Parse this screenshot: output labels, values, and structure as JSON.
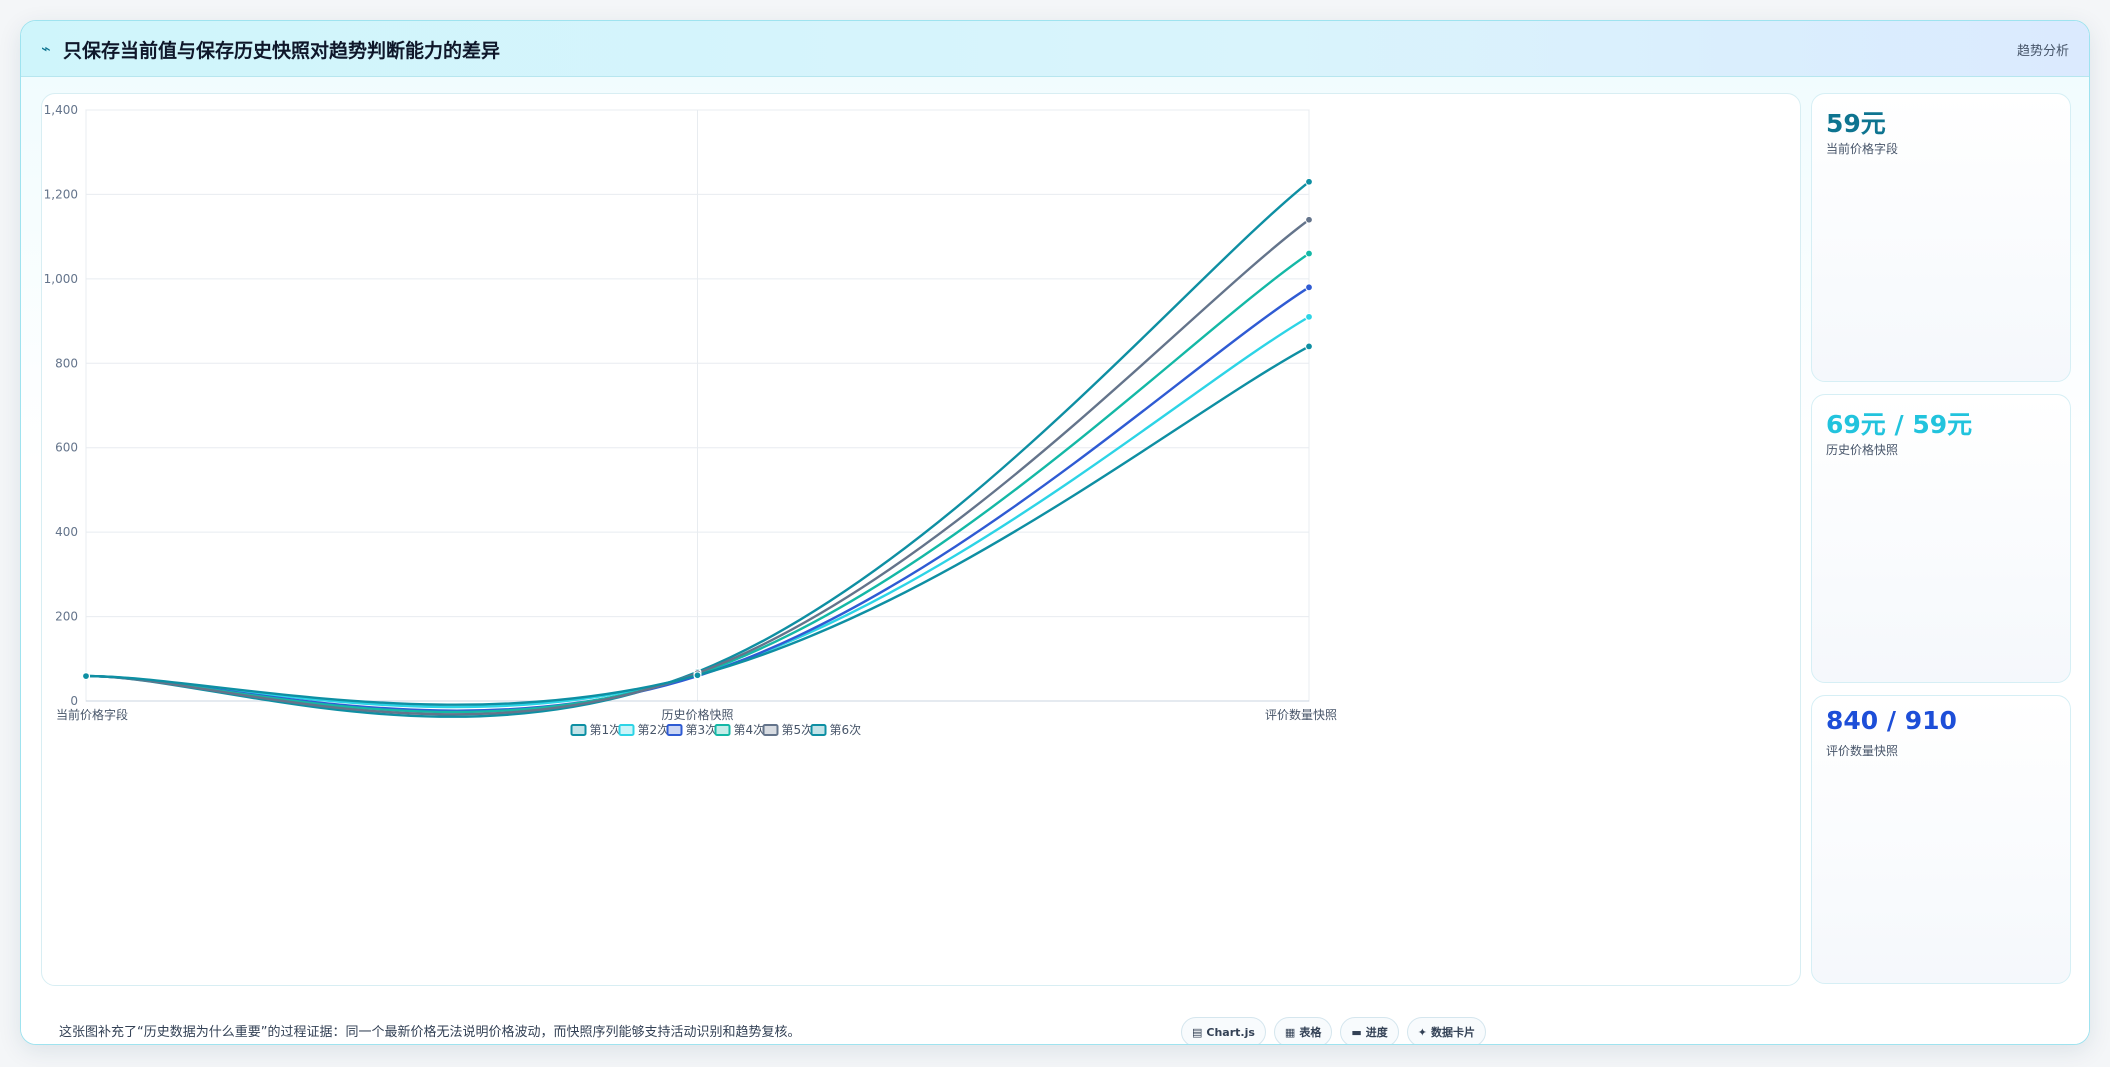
{
  "header": {
    "icon": "trend-line-icon",
    "title": "只保存当前值与保存历史快照对趋势判断能力的差异",
    "tag": "趋势分析"
  },
  "stats": [
    {
      "value": "59元",
      "label": "当前价格字段",
      "color": "#0e7490"
    },
    {
      "value": "69元 / 59元",
      "label": "历史价格快照",
      "color": "#22c3dd"
    },
    {
      "value": "840 / 910",
      "label": "评价数量快照",
      "color": "#1d4ed8"
    }
  ],
  "footer": {
    "note": "这张图补充了“历史数据为什么重要”的过程证据：同一个最新价格无法说明价格波动，而快照序列能够支持活动识别和趋势复核。",
    "chips": [
      {
        "icon": "chart-icon",
        "label": "Chart.js"
      },
      {
        "icon": "table-icon",
        "label": "表格"
      },
      {
        "icon": "progress-icon",
        "label": "进度"
      },
      {
        "icon": "card-icon",
        "label": "数据卡片"
      }
    ]
  },
  "chart_data": {
    "type": "line",
    "title": "",
    "xlabel": "",
    "ylabel": "",
    "categories": [
      "当前价格字段",
      "历史价格快照",
      "评价数量快照"
    ],
    "ylim": [
      0,
      1400
    ],
    "yticks": [
      0,
      200,
      400,
      600,
      800,
      1000,
      1200,
      1400
    ],
    "ytick_labels": [
      "0",
      "200",
      "400",
      "600",
      "800",
      "1,000",
      "1,200",
      "1,400"
    ],
    "grid": true,
    "legend": "bottom-center",
    "series": [
      {
        "name": "第1次",
        "values": [
          59,
          69,
          1230
        ],
        "color": "#0e8fa3"
      },
      {
        "name": "第2次",
        "values": [
          59,
          62,
          910
        ],
        "color": "#2dd4e6"
      },
      {
        "name": "第3次",
        "values": [
          59,
          59,
          980
        ],
        "color": "#2f5bd3"
      },
      {
        "name": "第4次",
        "values": [
          59,
          64,
          1060
        ],
        "color": "#14b8a6"
      },
      {
        "name": "第5次",
        "values": [
          59,
          66,
          1140
        ],
        "color": "#64748b"
      },
      {
        "name": "第6次",
        "values": [
          59,
          61,
          840
        ],
        "color": "#0e8fa3"
      }
    ]
  }
}
